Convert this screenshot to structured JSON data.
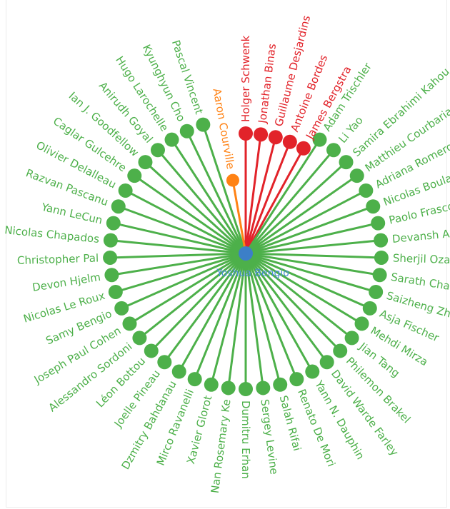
{
  "colors": {
    "coauthor": "#4db04a",
    "highlight_red": "#e2232a",
    "highlight_orange": "#ff8214",
    "center": "#3c7fc8",
    "center_label": "#4a8fd6"
  },
  "center": {
    "name": "Yoshua Bengio"
  },
  "nodes": [
    {
      "name": "Holger Schwenk",
      "group": "red"
    },
    {
      "name": "Jonathan Binas",
      "group": "red"
    },
    {
      "name": "Guillaume Desjardins",
      "group": "red"
    },
    {
      "name": "Antoine Bordes",
      "group": "red"
    },
    {
      "name": "James Bergstra",
      "group": "red"
    },
    {
      "name": "Adam Trischler",
      "group": "green"
    },
    {
      "name": "Li Yao",
      "group": "green"
    },
    {
      "name": "Samira Ebrahimi Kahou",
      "group": "green"
    },
    {
      "name": "Matthieu Courbariaux",
      "group": "green"
    },
    {
      "name": "Adriana Romero",
      "group": "green"
    },
    {
      "name": "Nicolas Boulanger-Lewandowski",
      "group": "green"
    },
    {
      "name": "Paolo Frasconi",
      "group": "green"
    },
    {
      "name": "Devansh Arpit",
      "group": "green"
    },
    {
      "name": "Sherjil Ozair",
      "group": "green"
    },
    {
      "name": "Sarath Chandar",
      "group": "green"
    },
    {
      "name": "Saizheng Zhang",
      "group": "green"
    },
    {
      "name": "Asja Fischer",
      "group": "green"
    },
    {
      "name": "Mehdi Mirza",
      "group": "green"
    },
    {
      "name": "Jian Tang",
      "group": "green"
    },
    {
      "name": "Philemon Brakel",
      "group": "green"
    },
    {
      "name": "David Warde Farley",
      "group": "green"
    },
    {
      "name": "Yann N. Dauphin",
      "group": "green"
    },
    {
      "name": "Renato De Mori",
      "group": "green"
    },
    {
      "name": "Salah Rifai",
      "group": "green"
    },
    {
      "name": "Sergey Levine",
      "group": "green"
    },
    {
      "name": "Dumitru Erhan",
      "group": "green"
    },
    {
      "name": "Nan Rosemary Ke",
      "group": "green"
    },
    {
      "name": "Xavier Glorot",
      "group": "green"
    },
    {
      "name": "Mirco Ravanelli",
      "group": "green"
    },
    {
      "name": "Dzmitry Bahdanau",
      "group": "green"
    },
    {
      "name": "Joelle Pineau",
      "group": "green"
    },
    {
      "name": "Léon Bottou",
      "group": "green"
    },
    {
      "name": "Alessandro Sordoni",
      "group": "green"
    },
    {
      "name": "Joseph Paul Cohen",
      "group": "green"
    },
    {
      "name": "Samy Bengio",
      "group": "green"
    },
    {
      "name": "Nicolas Le Roux",
      "group": "green"
    },
    {
      "name": "Devon Hjelm",
      "group": "green"
    },
    {
      "name": "Christopher Pal",
      "group": "green"
    },
    {
      "name": "Nicolas Chapados",
      "group": "green"
    },
    {
      "name": "Yann LeCun",
      "group": "green"
    },
    {
      "name": "Razvan Pascanu",
      "group": "green"
    },
    {
      "name": "Olivier Delalleau",
      "group": "green"
    },
    {
      "name": "Caglar Gulcehre",
      "group": "green"
    },
    {
      "name": "Ian J. Goodfellow",
      "group": "green"
    },
    {
      "name": "Anirudh Goyal",
      "group": "green"
    },
    {
      "name": "Hugo Larochelle",
      "group": "green"
    },
    {
      "name": "Kyunghyun Cho",
      "group": "green"
    },
    {
      "name": "Pascal Vincent",
      "group": "green"
    },
    {
      "name": "Aaron Courville",
      "group": "orange"
    }
  ]
}
